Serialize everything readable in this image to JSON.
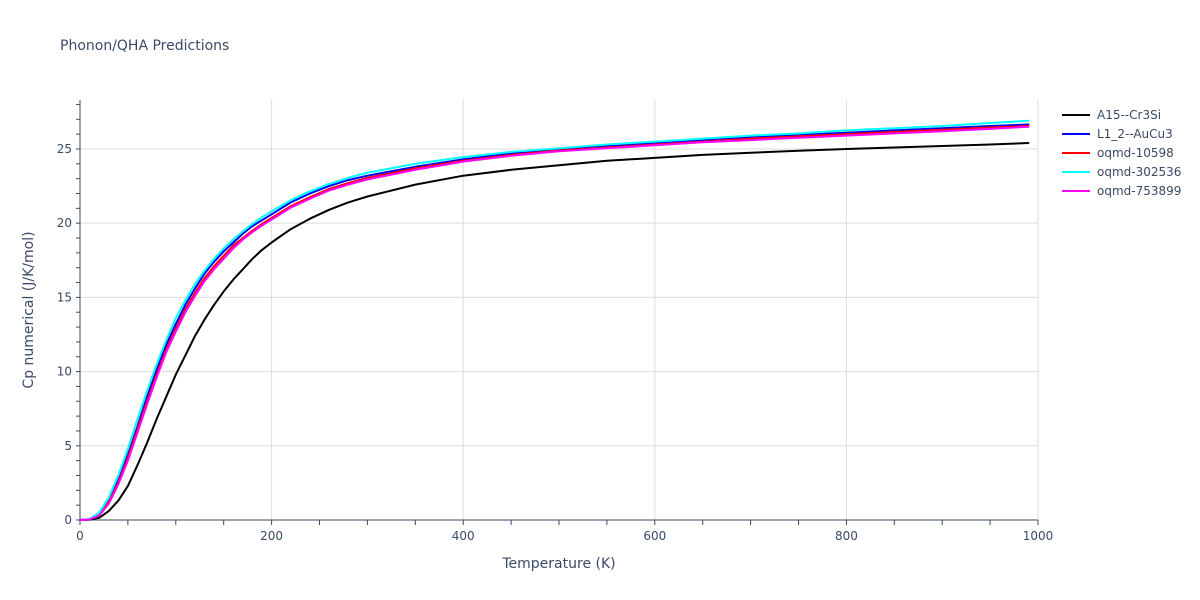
{
  "chart_data": {
    "type": "line",
    "title": "Phonon/QHA Predictions",
    "xlabel": "Temperature (K)",
    "ylabel": "Cp numerical (J/K/mol)",
    "xlim": [
      0,
      1000
    ],
    "ylim": [
      0,
      28.3
    ],
    "xticks": [
      0,
      200,
      400,
      600,
      800,
      1000
    ],
    "yticks": [
      0,
      5,
      10,
      15,
      20,
      25
    ],
    "grid": true,
    "legend_position": "top-right",
    "x": [
      0,
      10,
      20,
      30,
      40,
      50,
      60,
      70,
      80,
      90,
      100,
      110,
      120,
      130,
      140,
      150,
      160,
      170,
      180,
      190,
      200,
      220,
      240,
      260,
      280,
      300,
      350,
      400,
      450,
      500,
      550,
      600,
      650,
      700,
      750,
      800,
      850,
      900,
      950,
      990
    ],
    "series": [
      {
        "name": "A15--Cr3Si",
        "color": "#000000",
        "values": [
          0,
          0.02,
          0.15,
          0.6,
          1.3,
          2.3,
          3.7,
          5.2,
          6.8,
          8.3,
          9.8,
          11.1,
          12.4,
          13.5,
          14.5,
          15.4,
          16.2,
          16.9,
          17.6,
          18.2,
          18.7,
          19.6,
          20.3,
          20.9,
          21.4,
          21.8,
          22.6,
          23.2,
          23.6,
          23.9,
          24.2,
          24.4,
          24.6,
          24.75,
          24.88,
          25.0,
          25.1,
          25.2,
          25.3,
          25.4
        ]
      },
      {
        "name": "L1_2--AuCu3",
        "color": "#0000ff",
        "values": [
          0,
          0.05,
          0.4,
          1.3,
          2.7,
          4.4,
          6.3,
          8.3,
          10.1,
          11.8,
          13.2,
          14.5,
          15.6,
          16.6,
          17.4,
          18.1,
          18.7,
          19.3,
          19.8,
          20.2,
          20.6,
          21.4,
          22.0,
          22.5,
          22.9,
          23.2,
          23.8,
          24.3,
          24.7,
          25.0,
          25.2,
          25.4,
          25.6,
          25.8,
          25.95,
          26.1,
          26.25,
          26.4,
          26.55,
          26.65
        ]
      },
      {
        "name": "oqmd-10598",
        "color": "#ff0000",
        "values": [
          0,
          0.05,
          0.35,
          1.2,
          2.5,
          4.2,
          6.1,
          8.0,
          9.8,
          11.5,
          12.9,
          14.2,
          15.3,
          16.3,
          17.1,
          17.8,
          18.5,
          19.0,
          19.5,
          19.95,
          20.35,
          21.15,
          21.75,
          22.3,
          22.7,
          23.05,
          23.7,
          24.2,
          24.6,
          24.9,
          25.1,
          25.3,
          25.5,
          25.7,
          25.85,
          26.0,
          26.15,
          26.3,
          26.45,
          26.55
        ]
      },
      {
        "name": "oqmd-302536",
        "color": "#00ffff",
        "values": [
          0,
          0.06,
          0.5,
          1.5,
          3.0,
          4.8,
          6.8,
          8.7,
          10.5,
          12.1,
          13.6,
          14.8,
          15.9,
          16.8,
          17.6,
          18.3,
          18.9,
          19.45,
          19.95,
          20.4,
          20.8,
          21.55,
          22.15,
          22.65,
          23.05,
          23.4,
          24.0,
          24.45,
          24.8,
          25.05,
          25.3,
          25.5,
          25.7,
          25.9,
          26.05,
          26.25,
          26.4,
          26.55,
          26.75,
          26.9
        ]
      },
      {
        "name": "oqmd-753899",
        "color": "#ff00ff",
        "values": [
          0,
          0.04,
          0.3,
          1.1,
          2.4,
          4.0,
          5.9,
          7.8,
          9.6,
          11.3,
          12.7,
          14.0,
          15.1,
          16.1,
          16.9,
          17.6,
          18.3,
          18.9,
          19.4,
          19.85,
          20.25,
          21.05,
          21.65,
          22.2,
          22.6,
          22.95,
          23.6,
          24.15,
          24.55,
          24.85,
          25.05,
          25.25,
          25.45,
          25.6,
          25.75,
          25.9,
          26.05,
          26.2,
          26.35,
          26.5
        ]
      }
    ]
  }
}
